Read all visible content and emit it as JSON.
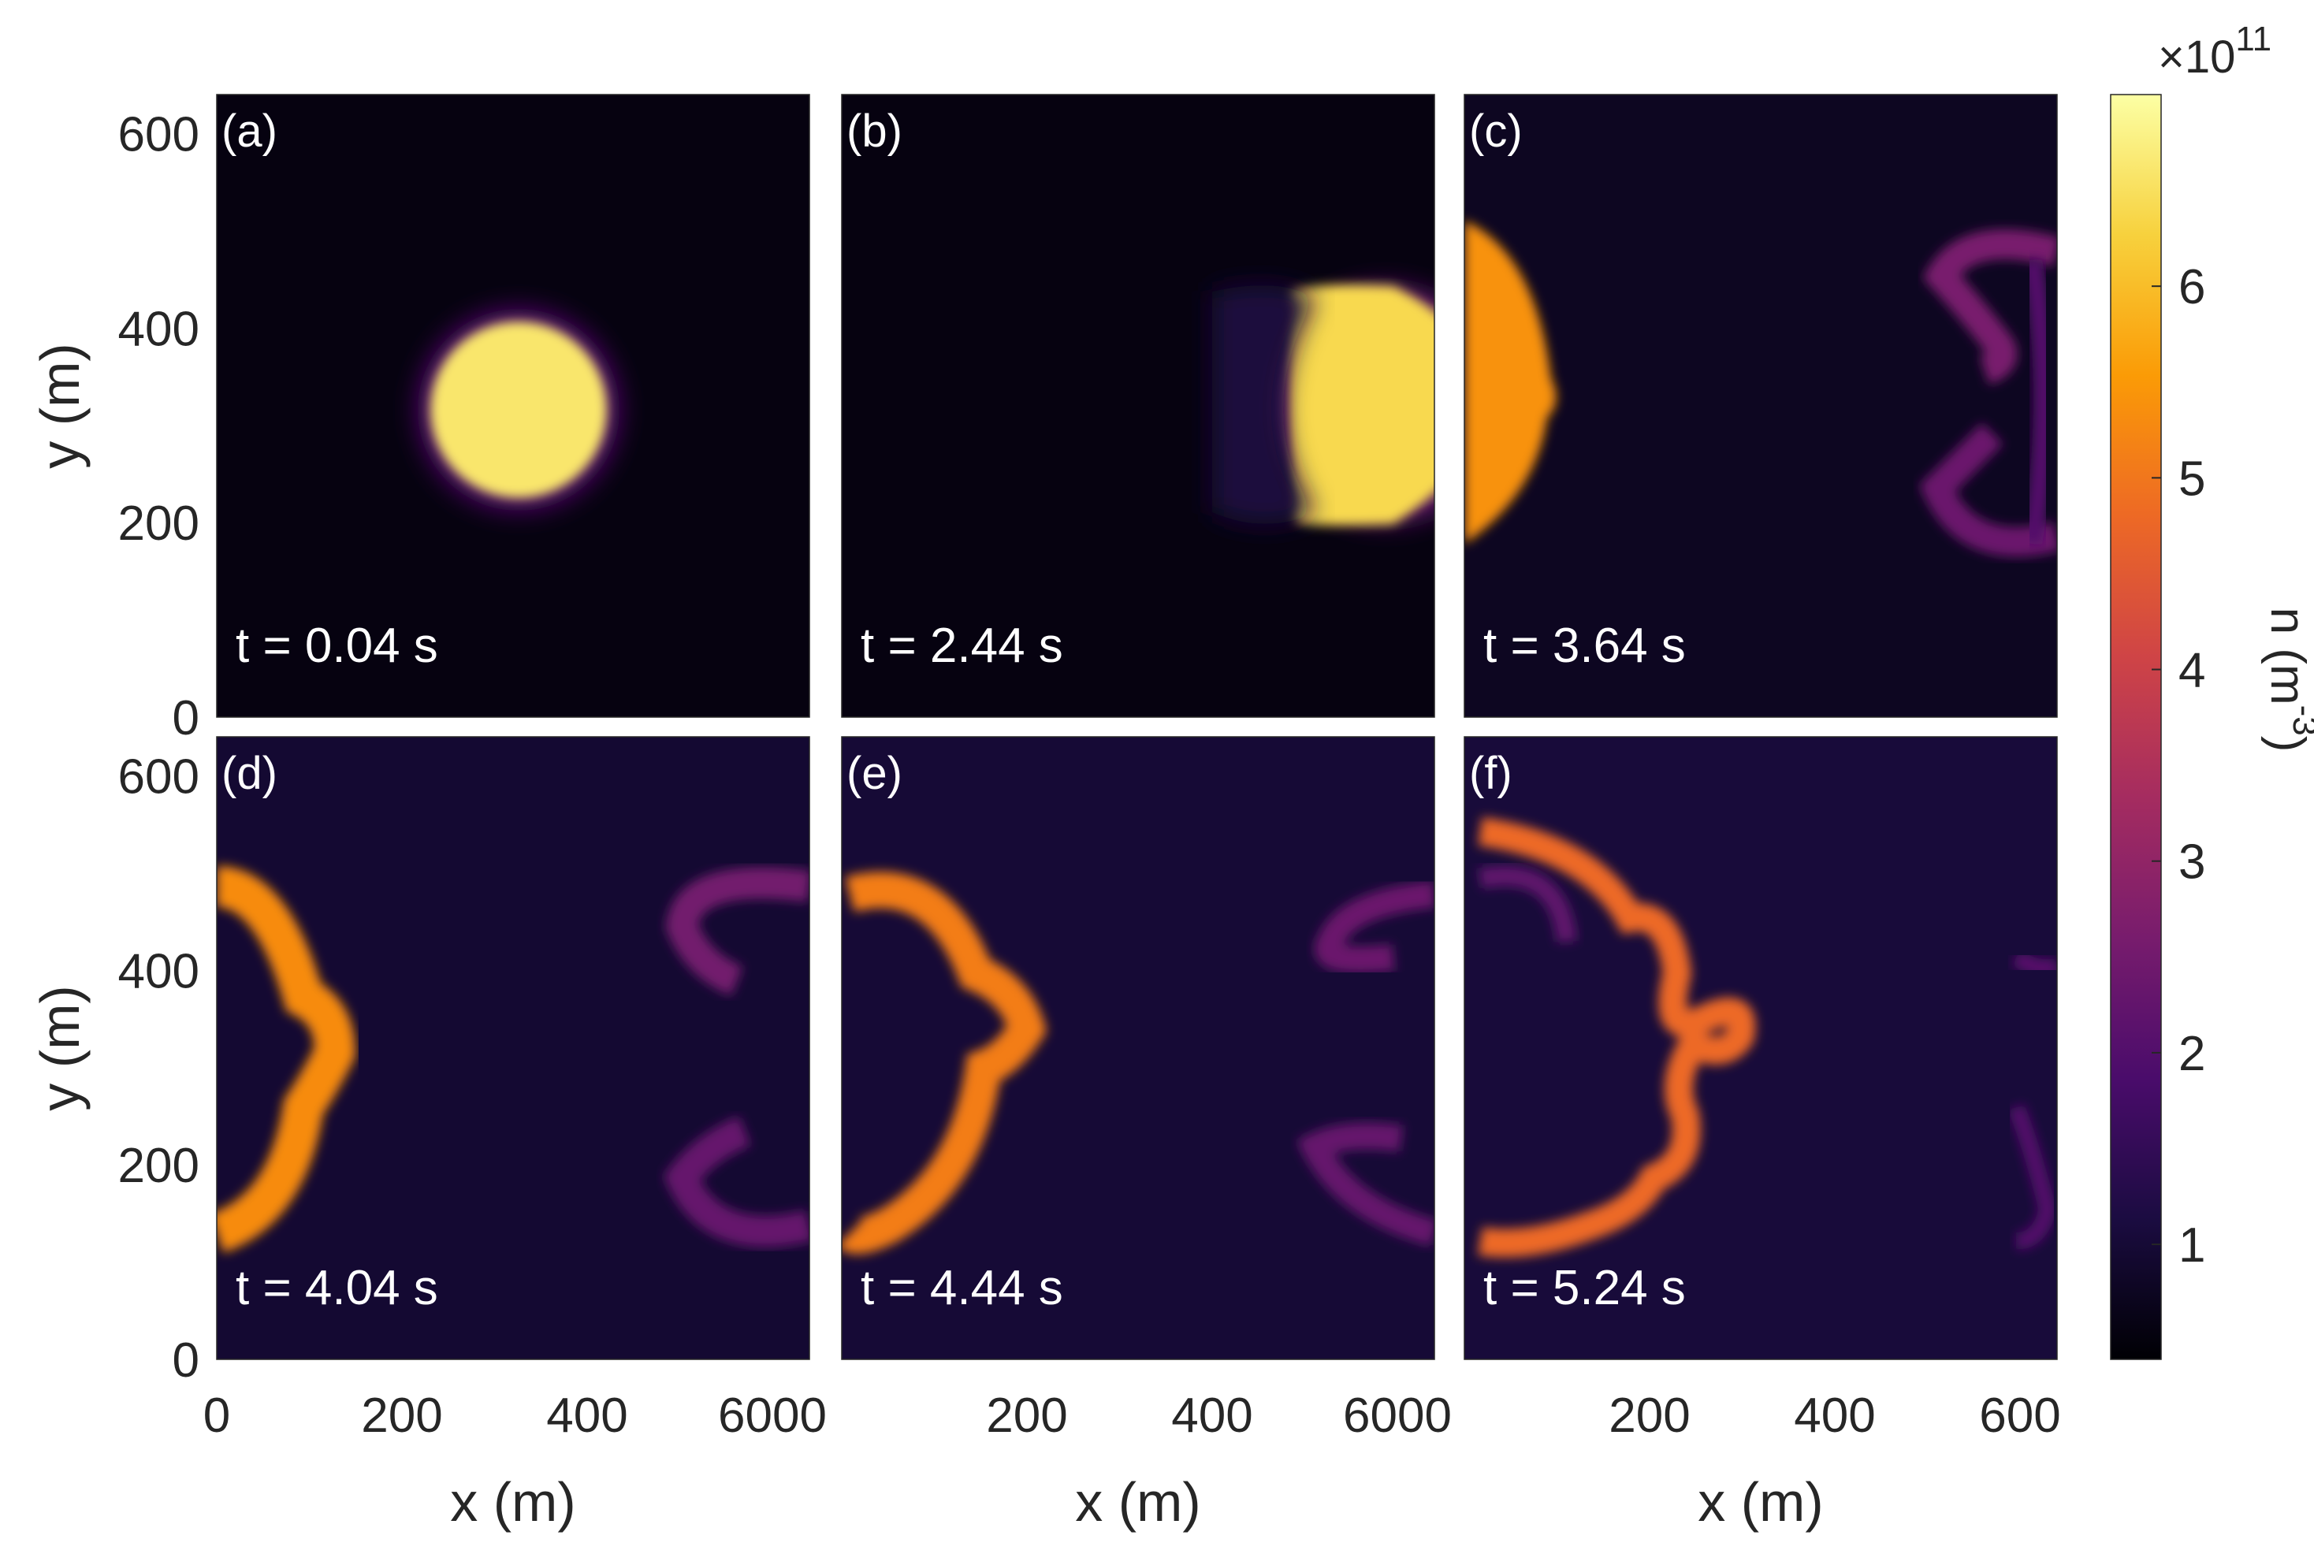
{
  "chart_data": {
    "type": "heatmap",
    "colormap": "inferno",
    "xlabel": "x (m)",
    "ylabel": "y (m)",
    "xlim": [
      0,
      640
    ],
    "ylim": [
      0,
      640
    ],
    "xticks": [
      0,
      200,
      400,
      600
    ],
    "yticks": [
      0,
      200,
      400,
      600
    ],
    "xtick_labels_row": [
      "0",
      "200",
      "400",
      "6000",
      "200",
      "400",
      "6000",
      "200",
      "400",
      "600"
    ],
    "colorbar": {
      "label": "n (m",
      "label_exponent": "-3",
      "label_close": ")",
      "scale_prefix": "×10",
      "scale_exponent": "11",
      "range": [
        0.4,
        7.0
      ],
      "ticks": [
        1,
        2,
        3,
        4,
        5,
        6
      ],
      "tick_labels": [
        "1",
        "2",
        "3",
        "4",
        "5",
        "6"
      ]
    },
    "panels": [
      {
        "label": "(a)",
        "time": "t = 0.04 s",
        "t_s": 0.04
      },
      {
        "label": "(b)",
        "time": "t = 2.44 s",
        "t_s": 2.44
      },
      {
        "label": "(c)",
        "time": "t = 3.64 s",
        "t_s": 3.64
      },
      {
        "label": "(d)",
        "time": "t = 4.04 s",
        "t_s": 4.04
      },
      {
        "label": "(e)",
        "time": "t = 4.44 s",
        "t_s": 4.44
      },
      {
        "label": "(f)",
        "time": "t = 5.24 s",
        "t_s": 5.24
      }
    ]
  },
  "colors": {
    "background": "#ffffff",
    "axis_text": "#262626",
    "panel_text": "#ffffff",
    "colormap_stops": [
      "#000004",
      "#1b0c41",
      "#4a0c6b",
      "#781c6d",
      "#a52c60",
      "#cf4446",
      "#ed6925",
      "#fb9b06",
      "#f7d13d",
      "#fcffa4"
    ]
  }
}
